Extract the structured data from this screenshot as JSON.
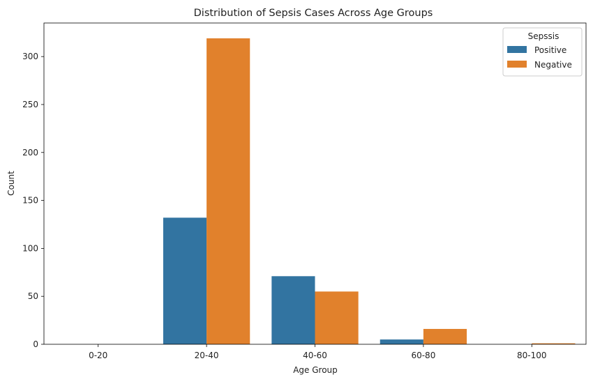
{
  "chart_data": {
    "type": "bar",
    "title": "Distribution of Sepsis Cases Across Age Groups",
    "xlabel": "Age Group",
    "ylabel": "Count",
    "categories": [
      "0-20",
      "20-40",
      "40-60",
      "60-80",
      "80-100"
    ],
    "series": [
      {
        "name": "Positive",
        "values": [
          0,
          132,
          71,
          5,
          0
        ],
        "color": "#3274a1"
      },
      {
        "name": "Negative",
        "values": [
          0,
          319,
          55,
          16,
          1
        ],
        "color": "#e1812c"
      }
    ],
    "ylim": [
      0,
      335
    ],
    "yticks": [
      0,
      50,
      100,
      150,
      200,
      250,
      300
    ],
    "grid": false,
    "legend": {
      "title": "Sepssis",
      "placement": "top-right"
    }
  }
}
